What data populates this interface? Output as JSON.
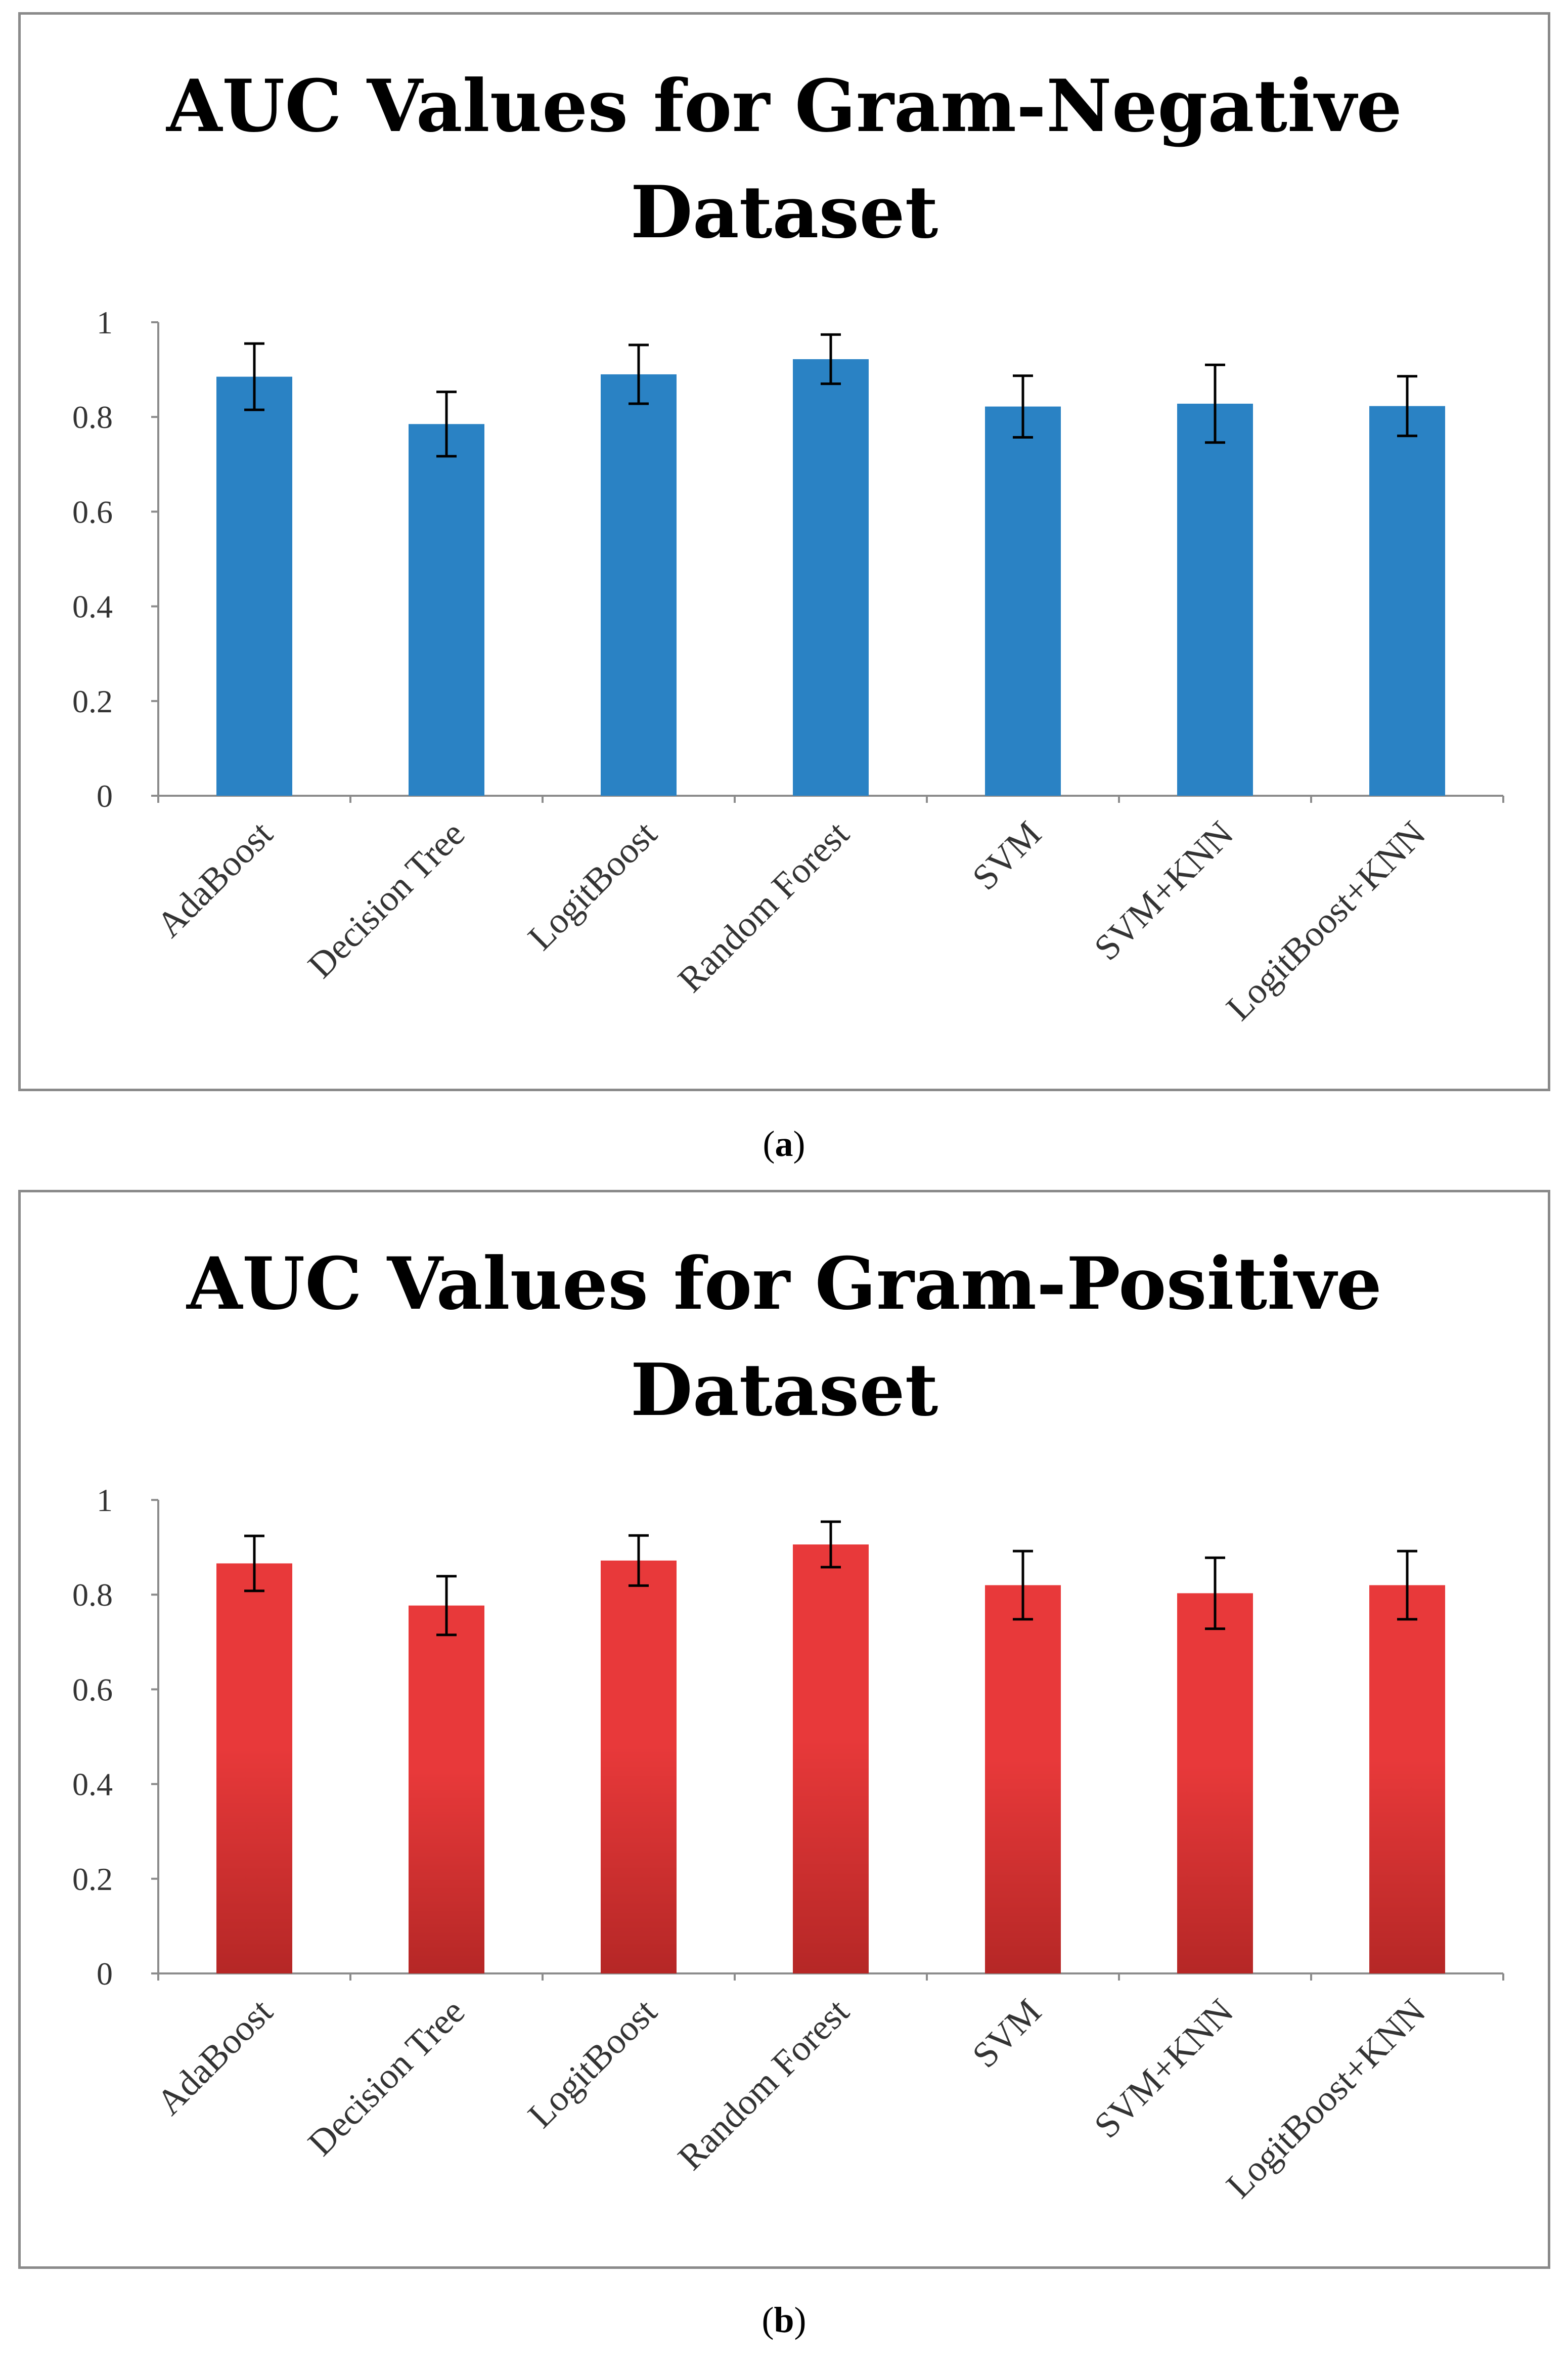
{
  "figure": {
    "panels": [
      {
        "caption_letter": "a",
        "bar_style": "solid",
        "bar_color": "#2a82c4",
        "chart_data": {
          "type": "bar",
          "title_lines": [
            "AUC Values for Gram-Negative",
            "Dataset"
          ],
          "categories": [
            "AdaBoost",
            "Decision Tree",
            "LogitBoost",
            "Random Forest",
            "SVM",
            "SVM+KNN",
            "LogitBoost+KNN"
          ],
          "values": [
            0.885,
            0.785,
            0.89,
            0.922,
            0.822,
            0.828,
            0.823
          ],
          "errors": [
            0.07,
            0.068,
            0.062,
            0.052,
            0.065,
            0.082,
            0.063
          ],
          "yticks": [
            "0",
            "0.2",
            "0.4",
            "0.6",
            "0.8",
            "1"
          ],
          "ylim": [
            0,
            1
          ],
          "xlabel": "",
          "ylabel": ""
        }
      },
      {
        "caption_letter": "b",
        "bar_style": "gradient",
        "bar_color": "#e8393a",
        "bar_color_bottom": "#b52726",
        "chart_data": {
          "type": "bar",
          "title_lines": [
            "AUC Values for Gram-Positive",
            "Dataset"
          ],
          "categories": [
            "AdaBoost",
            "Decision Tree",
            "LogitBoost",
            "Random Forest",
            "SVM",
            "SVM+KNN",
            "LogitBoost+KNN"
          ],
          "values": [
            0.866,
            0.777,
            0.872,
            0.906,
            0.82,
            0.803,
            0.82
          ],
          "errors": [
            0.058,
            0.062,
            0.053,
            0.048,
            0.072,
            0.075,
            0.072
          ],
          "yticks": [
            "0",
            "0.2",
            "0.4",
            "0.6",
            "0.8",
            "1"
          ],
          "ylim": [
            0,
            1
          ],
          "xlabel": "",
          "ylabel": ""
        }
      }
    ]
  }
}
